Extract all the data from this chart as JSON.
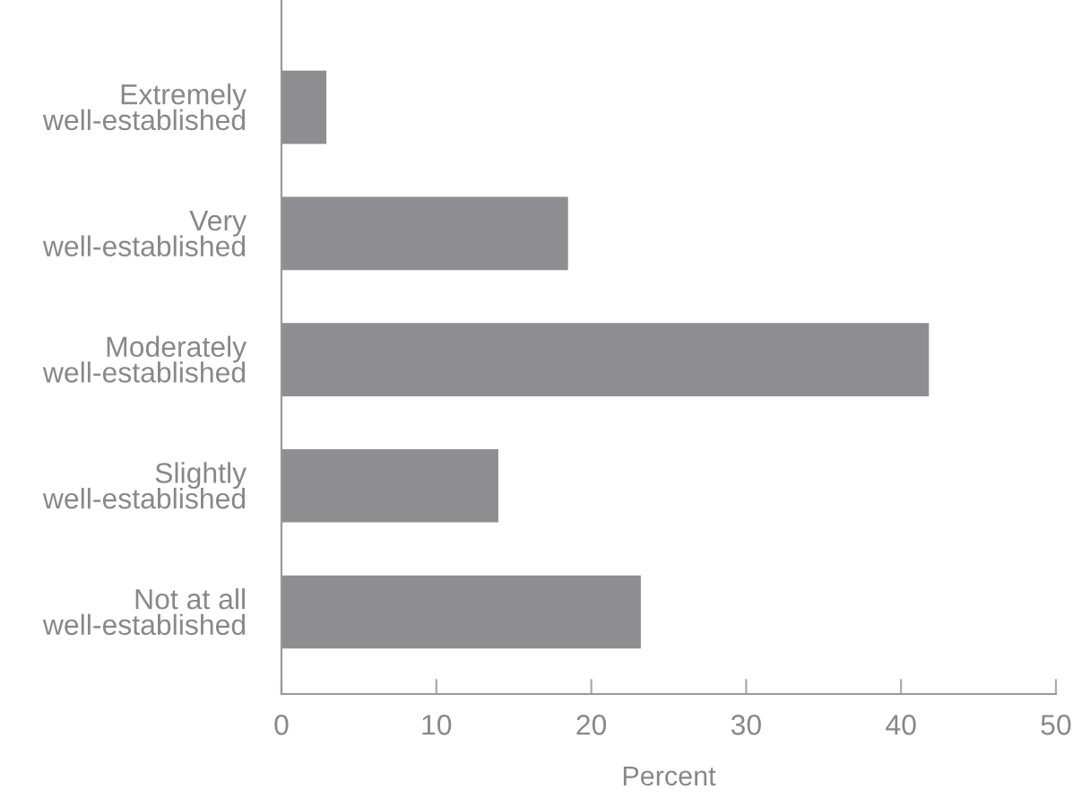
{
  "chart_data": {
    "type": "bar",
    "orientation": "horizontal",
    "xlabel": "Percent",
    "categories": [
      "Extremely\nwell-established",
      "Very\nwell-established",
      "Moderately\nwell-established",
      "Slightly\nwell-established",
      "Not at all\nwell-established"
    ],
    "values": [
      2.9,
      18.5,
      41.8,
      14.0,
      23.2
    ],
    "color": "#8e8d92",
    "xlim": [
      0,
      50
    ],
    "xticks": [
      0,
      10,
      20,
      30,
      40,
      50
    ],
    "grid": false,
    "legend": false
  }
}
